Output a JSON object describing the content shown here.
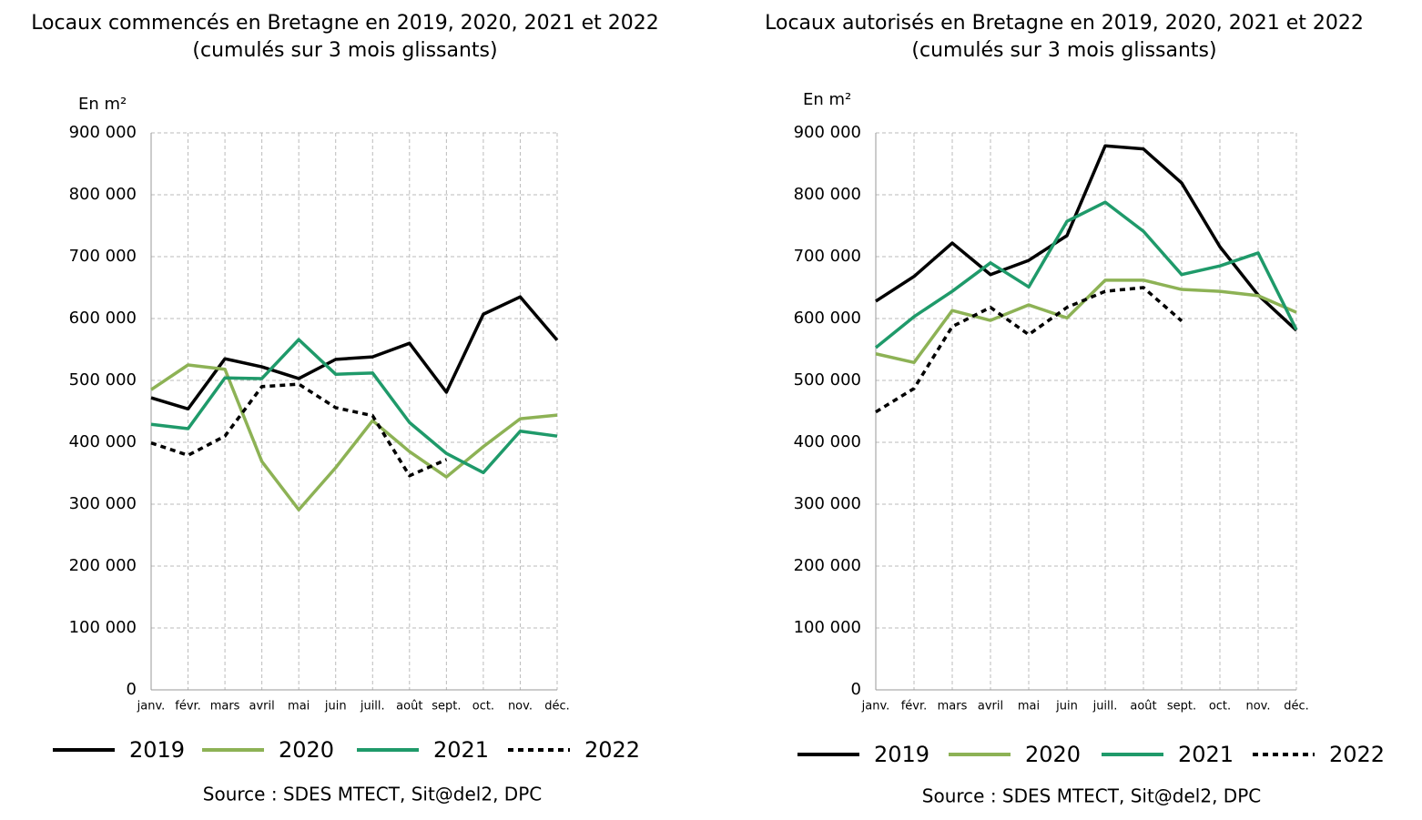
{
  "chart_data": [
    {
      "type": "line",
      "title": "Locaux commencés en Bretagne en 2019, 2020, 2021 et 2022",
      "subtitle": "(cumulés sur 3 mois glissants)",
      "y_label": "En m²",
      "categories": [
        "janv.",
        "févr.",
        "mars",
        "avril",
        "mai",
        "juin",
        "juill.",
        "août",
        "sept.",
        "oct.",
        "nov.",
        "déc."
      ],
      "series": [
        {
          "name": "2019",
          "color": "#000000",
          "style": "solid",
          "values": [
            472000,
            454000,
            535000,
            522000,
            503000,
            534000,
            538000,
            560000,
            481000,
            607000,
            635000,
            565000
          ]
        },
        {
          "name": "2020",
          "color": "#8db255",
          "style": "solid",
          "values": [
            485000,
            525000,
            518000,
            369000,
            291000,
            359000,
            435000,
            385000,
            344000,
            393000,
            438000,
            444000
          ]
        },
        {
          "name": "2021",
          "color": "#1f9a6a",
          "style": "solid",
          "values": [
            429000,
            422000,
            504000,
            503000,
            566000,
            510000,
            512000,
            432000,
            382000,
            351000,
            418000,
            410000
          ]
        },
        {
          "name": "2022",
          "color": "#000000",
          "style": "dashed",
          "values": [
            399000,
            379000,
            410000,
            490000,
            494000,
            456000,
            443000,
            346000,
            372000,
            null,
            null,
            null
          ]
        }
      ],
      "ylim": [
        0,
        900000
      ],
      "yticks": [
        0,
        {
          "value": 100000,
          "label": "100 000"
        },
        {
          "value": 200000,
          "label": "200 000"
        },
        {
          "value": 300000,
          "label": "300 000"
        },
        {
          "value": 400000,
          "label": "400 000"
        },
        {
          "value": 500000,
          "label": "500 000"
        },
        {
          "value": 600000,
          "label": "600 000"
        },
        {
          "value": 700000,
          "label": "700 000"
        },
        {
          "value": 800000,
          "label": "800 000"
        },
        {
          "value": 900000,
          "label": "900 000"
        }
      ],
      "grid": true,
      "legend": "bottom",
      "source": "Source : SDES MTECT, Sit@del2, DPC"
    },
    {
      "type": "line",
      "title": "Locaux autorisés en Bretagne en 2019, 2020, 2021 et 2022",
      "subtitle": "(cumulés sur 3 mois glissants)",
      "y_label": "En m²",
      "categories": [
        "janv.",
        "févr.",
        "mars",
        "avril",
        "mai",
        "juin",
        "juill.",
        "août",
        "sept.",
        "oct.",
        "nov.",
        "déc."
      ],
      "series": [
        {
          "name": "2019",
          "color": "#000000",
          "style": "solid",
          "values": [
            628000,
            668000,
            722000,
            671000,
            694000,
            734000,
            879000,
            874000,
            819000,
            716000,
            638000,
            581000
          ]
        },
        {
          "name": "2020",
          "color": "#8db255",
          "style": "solid",
          "values": [
            543000,
            529000,
            613000,
            597000,
            622000,
            601000,
            662000,
            662000,
            647000,
            644000,
            637000,
            610000
          ]
        },
        {
          "name": "2021",
          "color": "#1f9a6a",
          "style": "solid",
          "values": [
            553000,
            603000,
            644000,
            690000,
            651000,
            757000,
            788000,
            741000,
            671000,
            685000,
            706000,
            582000
          ]
        },
        {
          "name": "2022",
          "color": "#000000",
          "style": "dashed",
          "values": [
            449000,
            487000,
            587000,
            618000,
            574000,
            618000,
            644000,
            650000,
            596000,
            null,
            null,
            null
          ]
        }
      ],
      "ylim": [
        0,
        900000
      ],
      "yticks": [
        0,
        {
          "value": 100000,
          "label": "100 000"
        },
        {
          "value": 200000,
          "label": "200 000"
        },
        {
          "value": 300000,
          "label": "300 000"
        },
        {
          "value": 400000,
          "label": "400 000"
        },
        {
          "value": 500000,
          "label": "500 000"
        },
        {
          "value": 600000,
          "label": "600 000"
        },
        {
          "value": 700000,
          "label": "700 000"
        },
        {
          "value": 800000,
          "label": "800 000"
        },
        {
          "value": 900000,
          "label": "900 000"
        }
      ],
      "grid": true,
      "legend": "bottom",
      "source": "Source : SDES MTECT, Sit@del2, DPC"
    }
  ]
}
